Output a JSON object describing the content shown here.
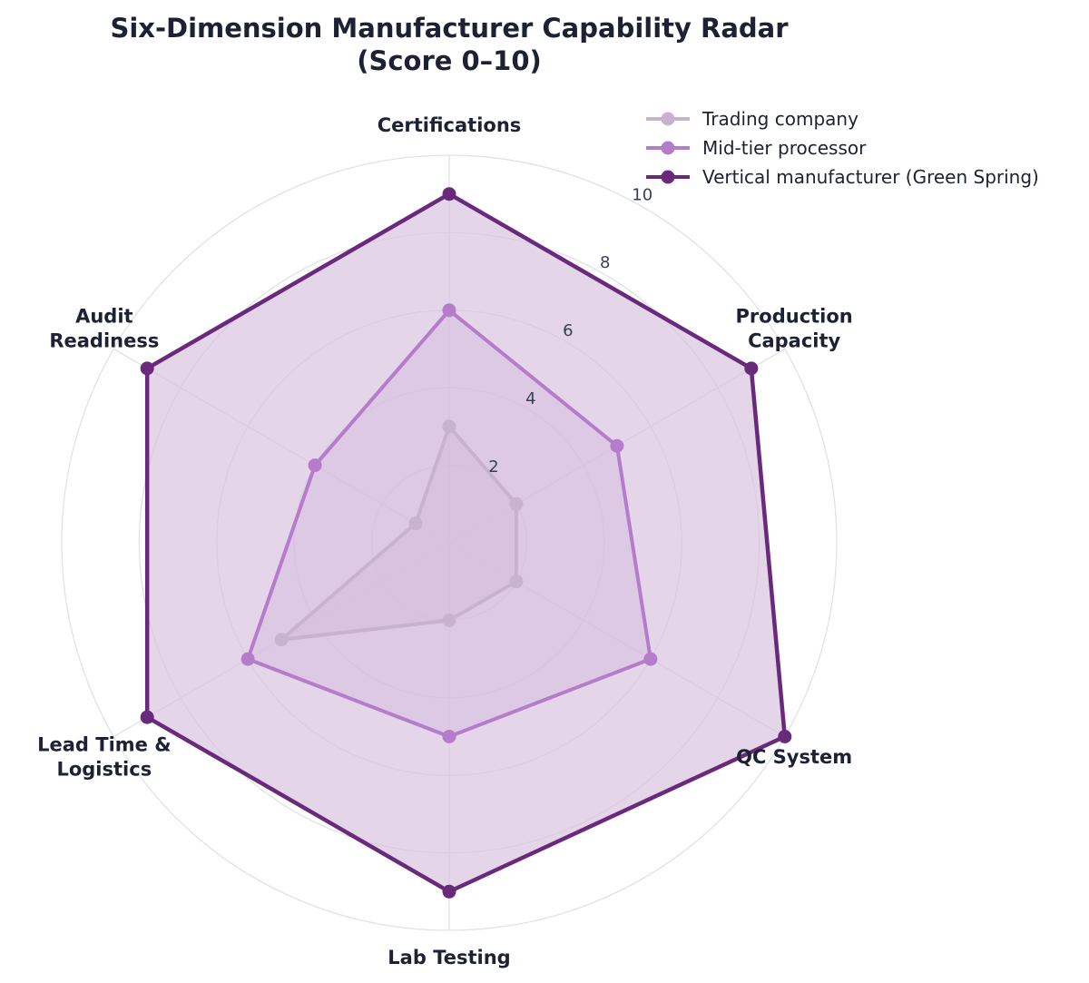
{
  "chart_data": {
    "type": "radar",
    "title": "Six-Dimension Manufacturer Capability Radar",
    "subtitle": "(Score 0–10)",
    "axes": [
      {
        "label": "Certifications",
        "lines": [
          "Certifications"
        ]
      },
      {
        "label": "Production Capacity",
        "lines": [
          "Production",
          "Capacity"
        ]
      },
      {
        "label": "QC System",
        "lines": [
          "QC System"
        ]
      },
      {
        "label": "Lab Testing",
        "lines": [
          "Lab Testing"
        ]
      },
      {
        "label": "Lead Time & Logistics",
        "lines": [
          "Lead Time &",
          "Logistics"
        ]
      },
      {
        "label": "Audit Readiness",
        "lines": [
          "Audit",
          "Readiness"
        ]
      }
    ],
    "rlim": [
      0,
      10
    ],
    "rticks": [
      2,
      4,
      6,
      8,
      10
    ],
    "tick_labels": [
      "2",
      "4",
      "6",
      "8",
      "10"
    ],
    "grid": true,
    "legend": "top-right",
    "series": [
      {
        "name": "Trading company",
        "values": [
          3,
          2,
          2,
          2,
          5,
          1
        ],
        "color": "#c9b1d0",
        "fill": "#c9b1d0"
      },
      {
        "name": "Mid-tier processor",
        "values": [
          6,
          5,
          6,
          5,
          6,
          4
        ],
        "color": "#b57ccb",
        "fill": "#c9a2d4"
      },
      {
        "name": "Vertical manufacturer (Green Spring)",
        "values": [
          9,
          9,
          10,
          9,
          9,
          9
        ],
        "color": "#6a2a7c",
        "fill": "#d8c3df"
      }
    ]
  }
}
